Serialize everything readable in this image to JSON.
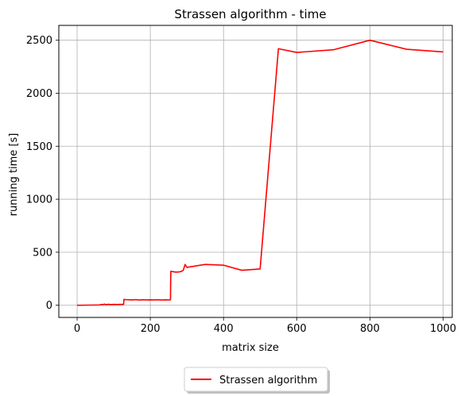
{
  "chart_data": {
    "type": "line",
    "title": "Strassen algorithm - time",
    "xlabel": "matrix size",
    "ylabel": "running time [s]",
    "xlim": [
      -50,
      1025
    ],
    "ylim": [
      -115,
      2640
    ],
    "xticks": [
      0,
      200,
      400,
      600,
      800,
      1000
    ],
    "yticks": [
      0,
      500,
      1000,
      1500,
      2000,
      2500
    ],
    "grid": true,
    "legend": "below center",
    "series": [
      {
        "name": "Strassen algorithm",
        "color": "#ff0000",
        "x": [
          0,
          30,
          62,
          66,
          70,
          74,
          80,
          86,
          92,
          100,
          110,
          120,
          127,
          128,
          132,
          140,
          150,
          160,
          170,
          180,
          190,
          200,
          210,
          220,
          230,
          240,
          250,
          255,
          256,
          260,
          270,
          280,
          285,
          290,
          295,
          300,
          350,
          400,
          450,
          500,
          550,
          600,
          700,
          800,
          900,
          1000
        ],
        "y": [
          0,
          1,
          3,
          8,
          5,
          10,
          6,
          9,
          6,
          8,
          7,
          8,
          8,
          55,
          53,
          52,
          50,
          53,
          49,
          52,
          50,
          51,
          50,
          52,
          49,
          51,
          50,
          51,
          320,
          318,
          312,
          315,
          320,
          330,
          385,
          357,
          385,
          378,
          330,
          342,
          2420,
          2385,
          2410,
          2500,
          2415,
          2390
        ]
      }
    ]
  }
}
